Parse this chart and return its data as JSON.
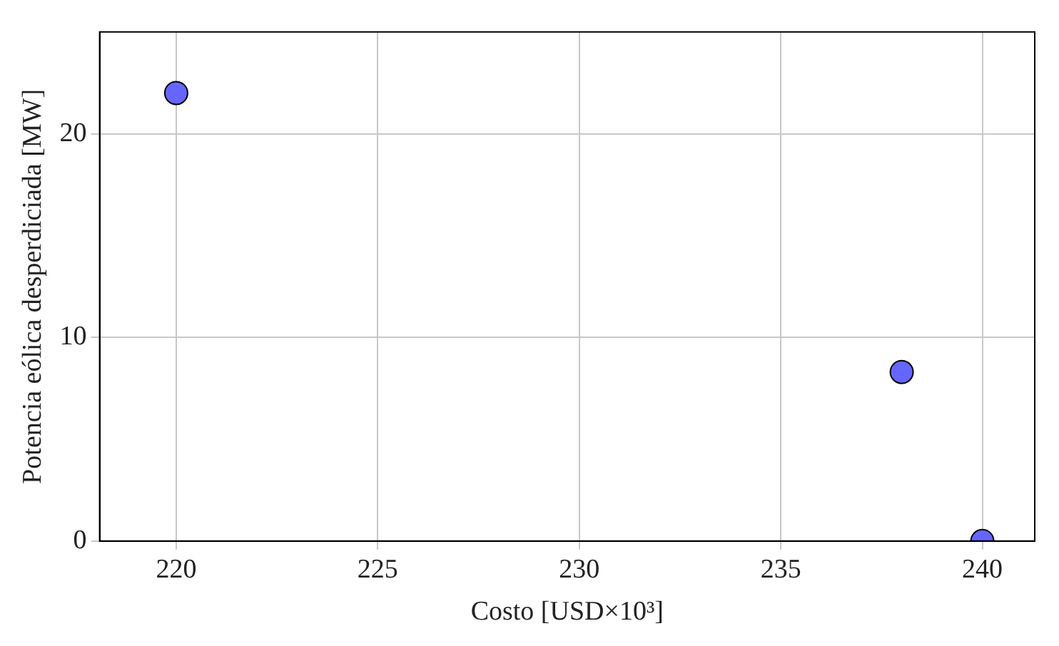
{
  "chart_data": {
    "type": "scatter",
    "xlabel": "Costo [USD×10³]",
    "ylabel": "Potencia eólica desperdiciada [MW]",
    "x": [
      220,
      238,
      240
    ],
    "series": [
      {
        "color": "#6666ff",
        "values": [
          22,
          8.3,
          0
        ]
      }
    ],
    "xlim": [
      218.1,
      241.3
    ],
    "xticks": [
      220,
      225,
      230,
      235,
      240
    ],
    "ylim": [
      0,
      25
    ],
    "yticks": [
      0,
      10,
      20
    ],
    "grid": true,
    "marker": "circle"
  }
}
